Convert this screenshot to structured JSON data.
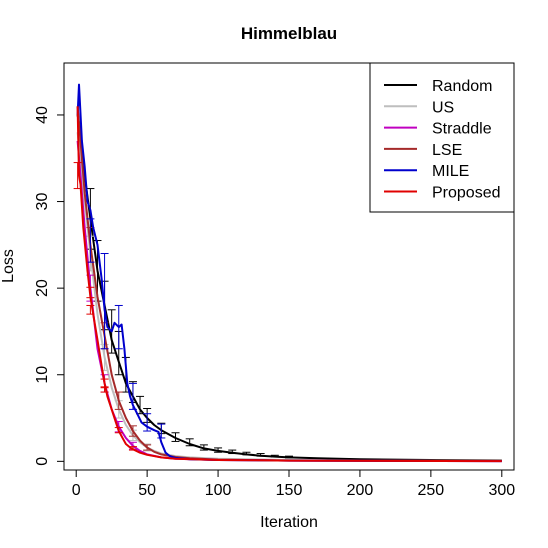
{
  "chart_data": {
    "type": "line",
    "title": "Himmelblau",
    "xlabel": "Iteration",
    "ylabel": "Loss",
    "xlim": [
      0,
      300
    ],
    "ylim": [
      -1,
      46
    ],
    "x_ticks": [
      0,
      50,
      100,
      150,
      200,
      250,
      300
    ],
    "y_ticks": [
      0,
      10,
      20,
      30,
      40
    ],
    "grid": false,
    "legend_position": "top-right",
    "series": [
      {
        "name": "Random",
        "color": "#000000",
        "points": [
          [
            1,
            40
          ],
          [
            3,
            38
          ],
          [
            6,
            33
          ],
          [
            10,
            28
          ],
          [
            15,
            22
          ],
          [
            20,
            18
          ],
          [
            25,
            14
          ],
          [
            30,
            11.5
          ],
          [
            35,
            9
          ],
          [
            40,
            7.5
          ],
          [
            45,
            6
          ],
          [
            50,
            5
          ],
          [
            55,
            4.2
          ],
          [
            60,
            3.6
          ],
          [
            70,
            2.7
          ],
          [
            80,
            2
          ],
          [
            90,
            1.5
          ],
          [
            100,
            1.2
          ],
          [
            110,
            1
          ],
          [
            120,
            0.8
          ],
          [
            130,
            0.65
          ],
          [
            140,
            0.55
          ],
          [
            150,
            0.45
          ],
          [
            170,
            0.35
          ],
          [
            200,
            0.25
          ],
          [
            250,
            0.15
          ],
          [
            300,
            0.1
          ]
        ],
        "error_bars": [
          [
            10,
            28,
            3.5
          ],
          [
            15,
            22,
            3.5
          ],
          [
            20,
            18,
            2.8
          ],
          [
            25,
            15,
            2.5
          ],
          [
            30,
            12.5,
            2.5
          ],
          [
            35,
            10,
            2
          ],
          [
            40,
            8,
            1.2
          ],
          [
            45,
            6.5,
            1
          ],
          [
            50,
            5.3,
            0.8
          ],
          [
            60,
            3.8,
            0.6
          ],
          [
            70,
            2.8,
            0.5
          ],
          [
            80,
            2.2,
            0.4
          ],
          [
            90,
            1.6,
            0.3
          ],
          [
            100,
            1.3,
            0.25
          ],
          [
            110,
            1.1,
            0.2
          ],
          [
            120,
            0.9,
            0.15
          ],
          [
            130,
            0.75,
            0.15
          ],
          [
            140,
            0.6,
            0.1
          ],
          [
            150,
            0.5,
            0.1
          ]
        ]
      },
      {
        "name": "US",
        "color": "#bebebe",
        "points": [
          [
            1,
            38
          ],
          [
            3,
            35
          ],
          [
            6,
            30
          ],
          [
            10,
            24
          ],
          [
            15,
            17
          ],
          [
            20,
            12
          ],
          [
            25,
            8.5
          ],
          [
            30,
            6
          ],
          [
            35,
            4.2
          ],
          [
            40,
            3
          ],
          [
            45,
            2.2
          ],
          [
            50,
            1.6
          ],
          [
            55,
            1.2
          ],
          [
            60,
            0.9
          ],
          [
            70,
            0.6
          ],
          [
            80,
            0.45
          ],
          [
            100,
            0.3
          ],
          [
            150,
            0.15
          ],
          [
            200,
            0.1
          ],
          [
            300,
            0.05
          ]
        ],
        "error_bars": [
          [
            10,
            24,
            2
          ],
          [
            20,
            12,
            1.5
          ],
          [
            30,
            6,
            1
          ],
          [
            40,
            3,
            0.6
          ],
          [
            50,
            1.6,
            0.4
          ]
        ]
      },
      {
        "name": "Straddle",
        "color": "#c000c0",
        "points": [
          [
            1,
            37
          ],
          [
            3,
            33
          ],
          [
            6,
            27
          ],
          [
            10,
            20
          ],
          [
            15,
            13
          ],
          [
            20,
            9
          ],
          [
            25,
            6
          ],
          [
            30,
            4
          ],
          [
            35,
            2.7
          ],
          [
            40,
            1.8
          ],
          [
            45,
            1.2
          ],
          [
            50,
            0.8
          ],
          [
            60,
            0.45
          ],
          [
            70,
            0.3
          ],
          [
            100,
            0.15
          ],
          [
            150,
            0.08
          ],
          [
            300,
            0.03
          ]
        ],
        "error_bars": [
          [
            10,
            20,
            1.5
          ],
          [
            20,
            9,
            1
          ],
          [
            30,
            4,
            0.6
          ],
          [
            40,
            1.8,
            0.4
          ]
        ]
      },
      {
        "name": "LSE",
        "color": "#a52a2a",
        "points": [
          [
            1,
            41
          ],
          [
            3,
            37
          ],
          [
            6,
            31
          ],
          [
            10,
            25
          ],
          [
            15,
            19
          ],
          [
            20,
            14.5
          ],
          [
            25,
            10
          ],
          [
            30,
            7
          ],
          [
            35,
            5
          ],
          [
            40,
            3.5
          ],
          [
            45,
            2.4
          ],
          [
            50,
            1.6
          ],
          [
            55,
            1.1
          ],
          [
            60,
            0.8
          ],
          [
            70,
            0.5
          ],
          [
            80,
            0.35
          ],
          [
            100,
            0.2
          ],
          [
            150,
            0.1
          ],
          [
            300,
            0.05
          ]
        ],
        "error_bars": [
          [
            10,
            25,
            2
          ],
          [
            20,
            14.5,
            1.5
          ],
          [
            30,
            7,
            1
          ],
          [
            40,
            3.5,
            0.6
          ],
          [
            50,
            1.6,
            0.3
          ]
        ]
      },
      {
        "name": "MILE",
        "color": "#0000cd",
        "points": [
          [
            1,
            40
          ],
          [
            2,
            43.5
          ],
          [
            4,
            37
          ],
          [
            6,
            34
          ],
          [
            8,
            30
          ],
          [
            10,
            29
          ],
          [
            12,
            27
          ],
          [
            15,
            25
          ],
          [
            18,
            21
          ],
          [
            20,
            17.5
          ],
          [
            22,
            15.5
          ],
          [
            25,
            15
          ],
          [
            27,
            16
          ],
          [
            30,
            15.5
          ],
          [
            32,
            15.8
          ],
          [
            34,
            13
          ],
          [
            36,
            9
          ],
          [
            38,
            7.5
          ],
          [
            40,
            6.5
          ],
          [
            43,
            5.5
          ],
          [
            46,
            4.5
          ],
          [
            50,
            4
          ],
          [
            55,
            3.6
          ],
          [
            58,
            3.4
          ],
          [
            60,
            2.2
          ],
          [
            63,
            1
          ],
          [
            66,
            0.6
          ],
          [
            70,
            0.4
          ],
          [
            80,
            0.25
          ],
          [
            100,
            0.15
          ],
          [
            150,
            0.08
          ],
          [
            300,
            0.03
          ]
        ],
        "error_bars": [
          [
            10,
            25.5,
            2.5
          ],
          [
            20,
            18.5,
            5.5
          ],
          [
            30,
            15.5,
            2.5
          ],
          [
            40,
            7.5,
            1.5
          ],
          [
            50,
            4.5,
            1
          ],
          [
            60,
            3.5,
            0.8
          ]
        ]
      },
      {
        "name": "Proposed",
        "color": "#e00000",
        "points": [
          [
            1,
            41
          ],
          [
            2,
            33
          ],
          [
            3,
            32
          ],
          [
            5,
            27
          ],
          [
            8,
            22
          ],
          [
            10,
            19
          ],
          [
            12,
            17
          ],
          [
            15,
            14
          ],
          [
            18,
            11
          ],
          [
            20,
            9
          ],
          [
            22,
            7.5
          ],
          [
            25,
            6
          ],
          [
            28,
            4.5
          ],
          [
            30,
            3.5
          ],
          [
            33,
            2.6
          ],
          [
            35,
            2
          ],
          [
            38,
            1.6
          ],
          [
            40,
            1.4
          ],
          [
            45,
            1
          ],
          [
            50,
            0.75
          ],
          [
            60,
            0.45
          ],
          [
            70,
            0.3
          ],
          [
            100,
            0.15
          ],
          [
            150,
            0.08
          ],
          [
            300,
            0.03
          ]
        ],
        "error_bars": [
          [
            1,
            33,
            1.5
          ],
          [
            10,
            19.5,
            0.6
          ],
          [
            10,
            17.5,
            0.5
          ],
          [
            20,
            9,
            0.5
          ],
          [
            20,
            8.3,
            0.3
          ],
          [
            30,
            3.6,
            0.3
          ],
          [
            40,
            1.5,
            0.2
          ]
        ]
      }
    ]
  }
}
